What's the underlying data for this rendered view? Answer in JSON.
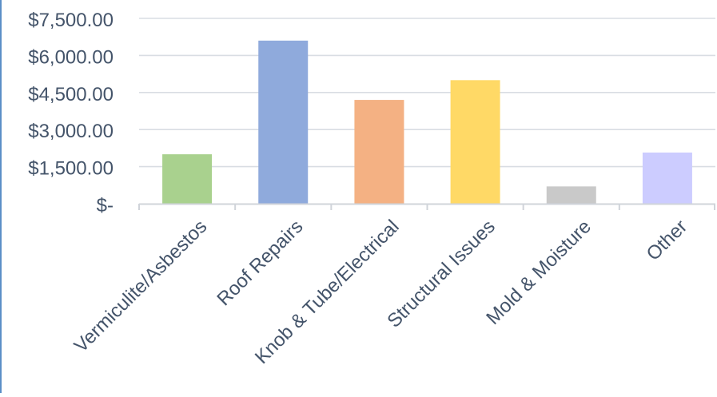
{
  "chart_data": {
    "type": "bar",
    "categories": [
      "Vermiculite/Asbestos",
      "Roof Repairs",
      "Knob & Tube/Electrical",
      "Structural Issues",
      "Mold & Moisture",
      "Other"
    ],
    "values": [
      2000,
      6600,
      4200,
      5000,
      700,
      2070
    ],
    "colors": [
      "#a9d18e",
      "#8faadc",
      "#f4b183",
      "#ffd966",
      "#c9c9c9",
      "#ccccff"
    ],
    "y_tick_labels": [
      "$-",
      "$1,500.00",
      "$3,000.00",
      "$4,500.00",
      "$6,000.00",
      "$7,500.00"
    ],
    "y_tick_values": [
      0,
      1500,
      3000,
      4500,
      6000,
      7500
    ],
    "ylim": [
      0,
      7500
    ],
    "title": "",
    "xlabel": "",
    "ylabel": "",
    "grid": true,
    "legend": "none",
    "gridline_color": "#d9dde3",
    "axis_color": "#d0d4da",
    "text_color": "#44546a"
  }
}
